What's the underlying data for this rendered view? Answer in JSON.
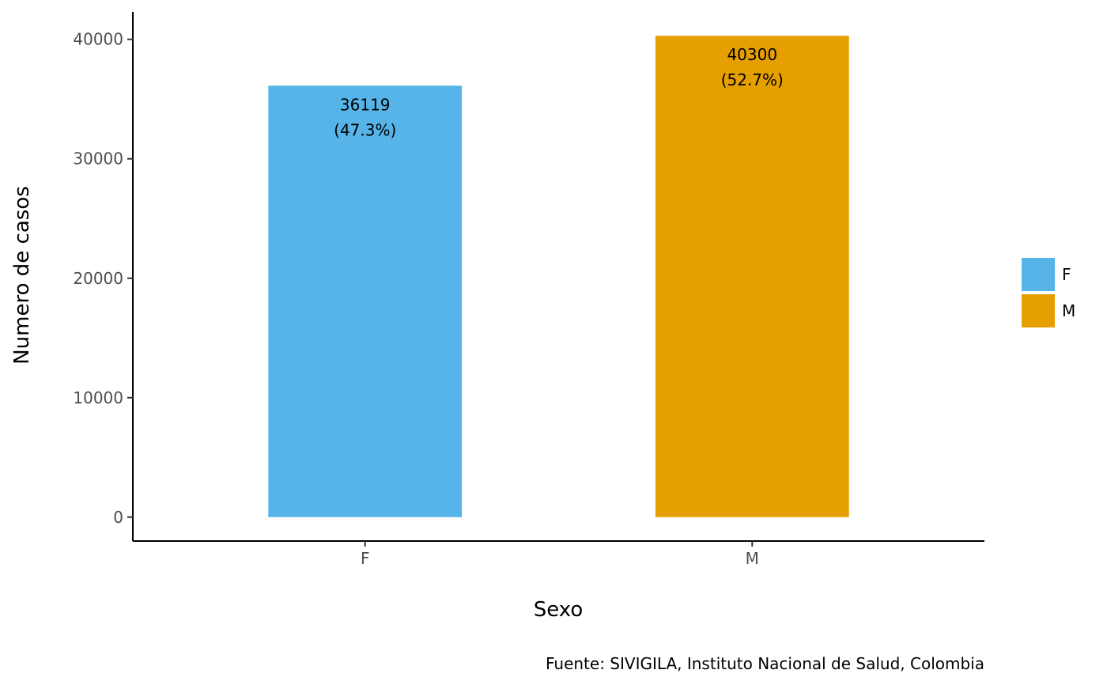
{
  "chart_data": {
    "type": "bar",
    "categories": [
      "F",
      "M"
    ],
    "values": [
      36119,
      40300
    ],
    "percent_labels": [
      "(47.3%)",
      "(52.7%)"
    ],
    "value_labels": [
      "36119",
      "40300"
    ],
    "colors": [
      "#56B4E9",
      "#E69F00"
    ],
    "xlabel": "Sexo",
    "ylabel": "Numero de casos",
    "ylim": [
      -2000,
      42300
    ],
    "yticks": [
      0,
      10000,
      20000,
      30000,
      40000
    ],
    "ytick_labels": [
      "0",
      "10000",
      "20000",
      "30000",
      "40000"
    ],
    "grid": false,
    "legend": {
      "position": "right",
      "entries": [
        {
          "label": "F",
          "color": "#56B4E9"
        },
        {
          "label": "M",
          "color": "#E69F00"
        }
      ]
    },
    "caption": "Fuente: SIVIGILA, Instituto Nacional de Salud, Colombia"
  }
}
